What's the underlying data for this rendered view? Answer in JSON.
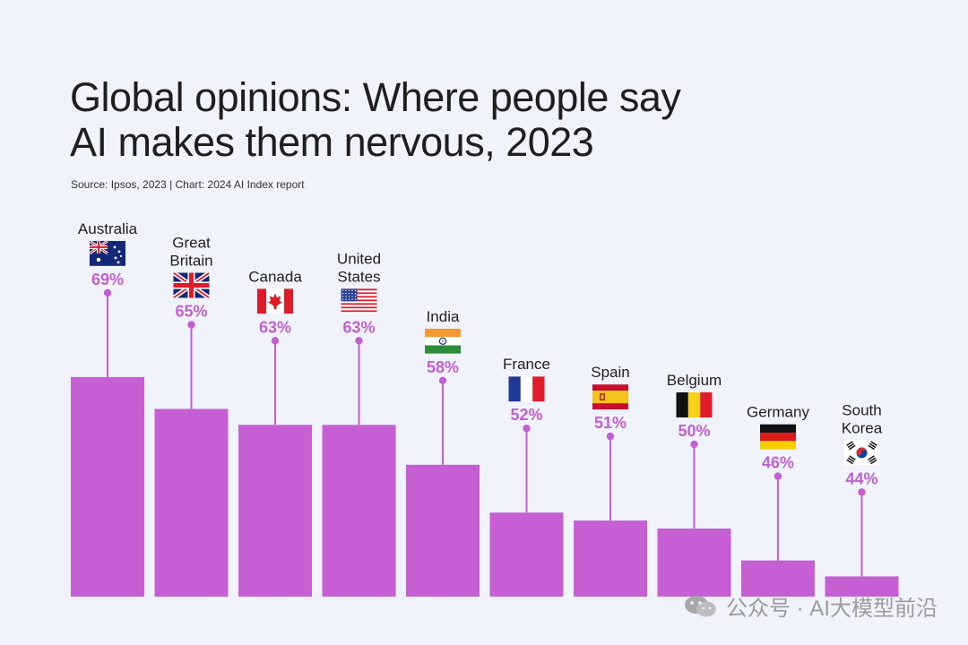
{
  "title_lines": [
    "Global opinions: Where people say",
    "AI makes them nervous, 2023"
  ],
  "source": "Source: Ipsos, 2023 | Chart: 2024 AI Index report",
  "watermark": "公众号 · AI大模型前沿",
  "colors": {
    "bar": "#C65ED4",
    "accent": "#C25FD3",
    "background": "#F0F3FB"
  },
  "chart_data": {
    "type": "bar",
    "title": "Global opinions: Where people say AI makes them nervous, 2023",
    "categories": [
      "Australia",
      "Great Britain",
      "Canada",
      "United States",
      "India",
      "France",
      "Spain",
      "Belgium",
      "Germany",
      "South Korea"
    ],
    "category_lines": [
      [
        "Australia"
      ],
      [
        "Great",
        "Britain"
      ],
      [
        "Canada"
      ],
      [
        "United",
        "States"
      ],
      [
        "India"
      ],
      [
        "France"
      ],
      [
        "Spain"
      ],
      [
        "Belgium"
      ],
      [
        "Germany"
      ],
      [
        "South",
        "Korea"
      ]
    ],
    "flags": [
      "australia-flag",
      "great-britain-flag",
      "canada-flag",
      "united-states-flag",
      "india-flag",
      "france-flag",
      "spain-flag",
      "belgium-flag",
      "germany-flag",
      "south-korea-flag"
    ],
    "values": [
      69,
      65,
      63,
      63,
      58,
      52,
      51,
      50,
      46,
      44
    ],
    "value_labels": [
      "69%",
      "65%",
      "63%",
      "63%",
      "58%",
      "52%",
      "51%",
      "50%",
      "46%",
      "44%"
    ],
    "unit": "%",
    "grid": false,
    "legend": "none"
  }
}
